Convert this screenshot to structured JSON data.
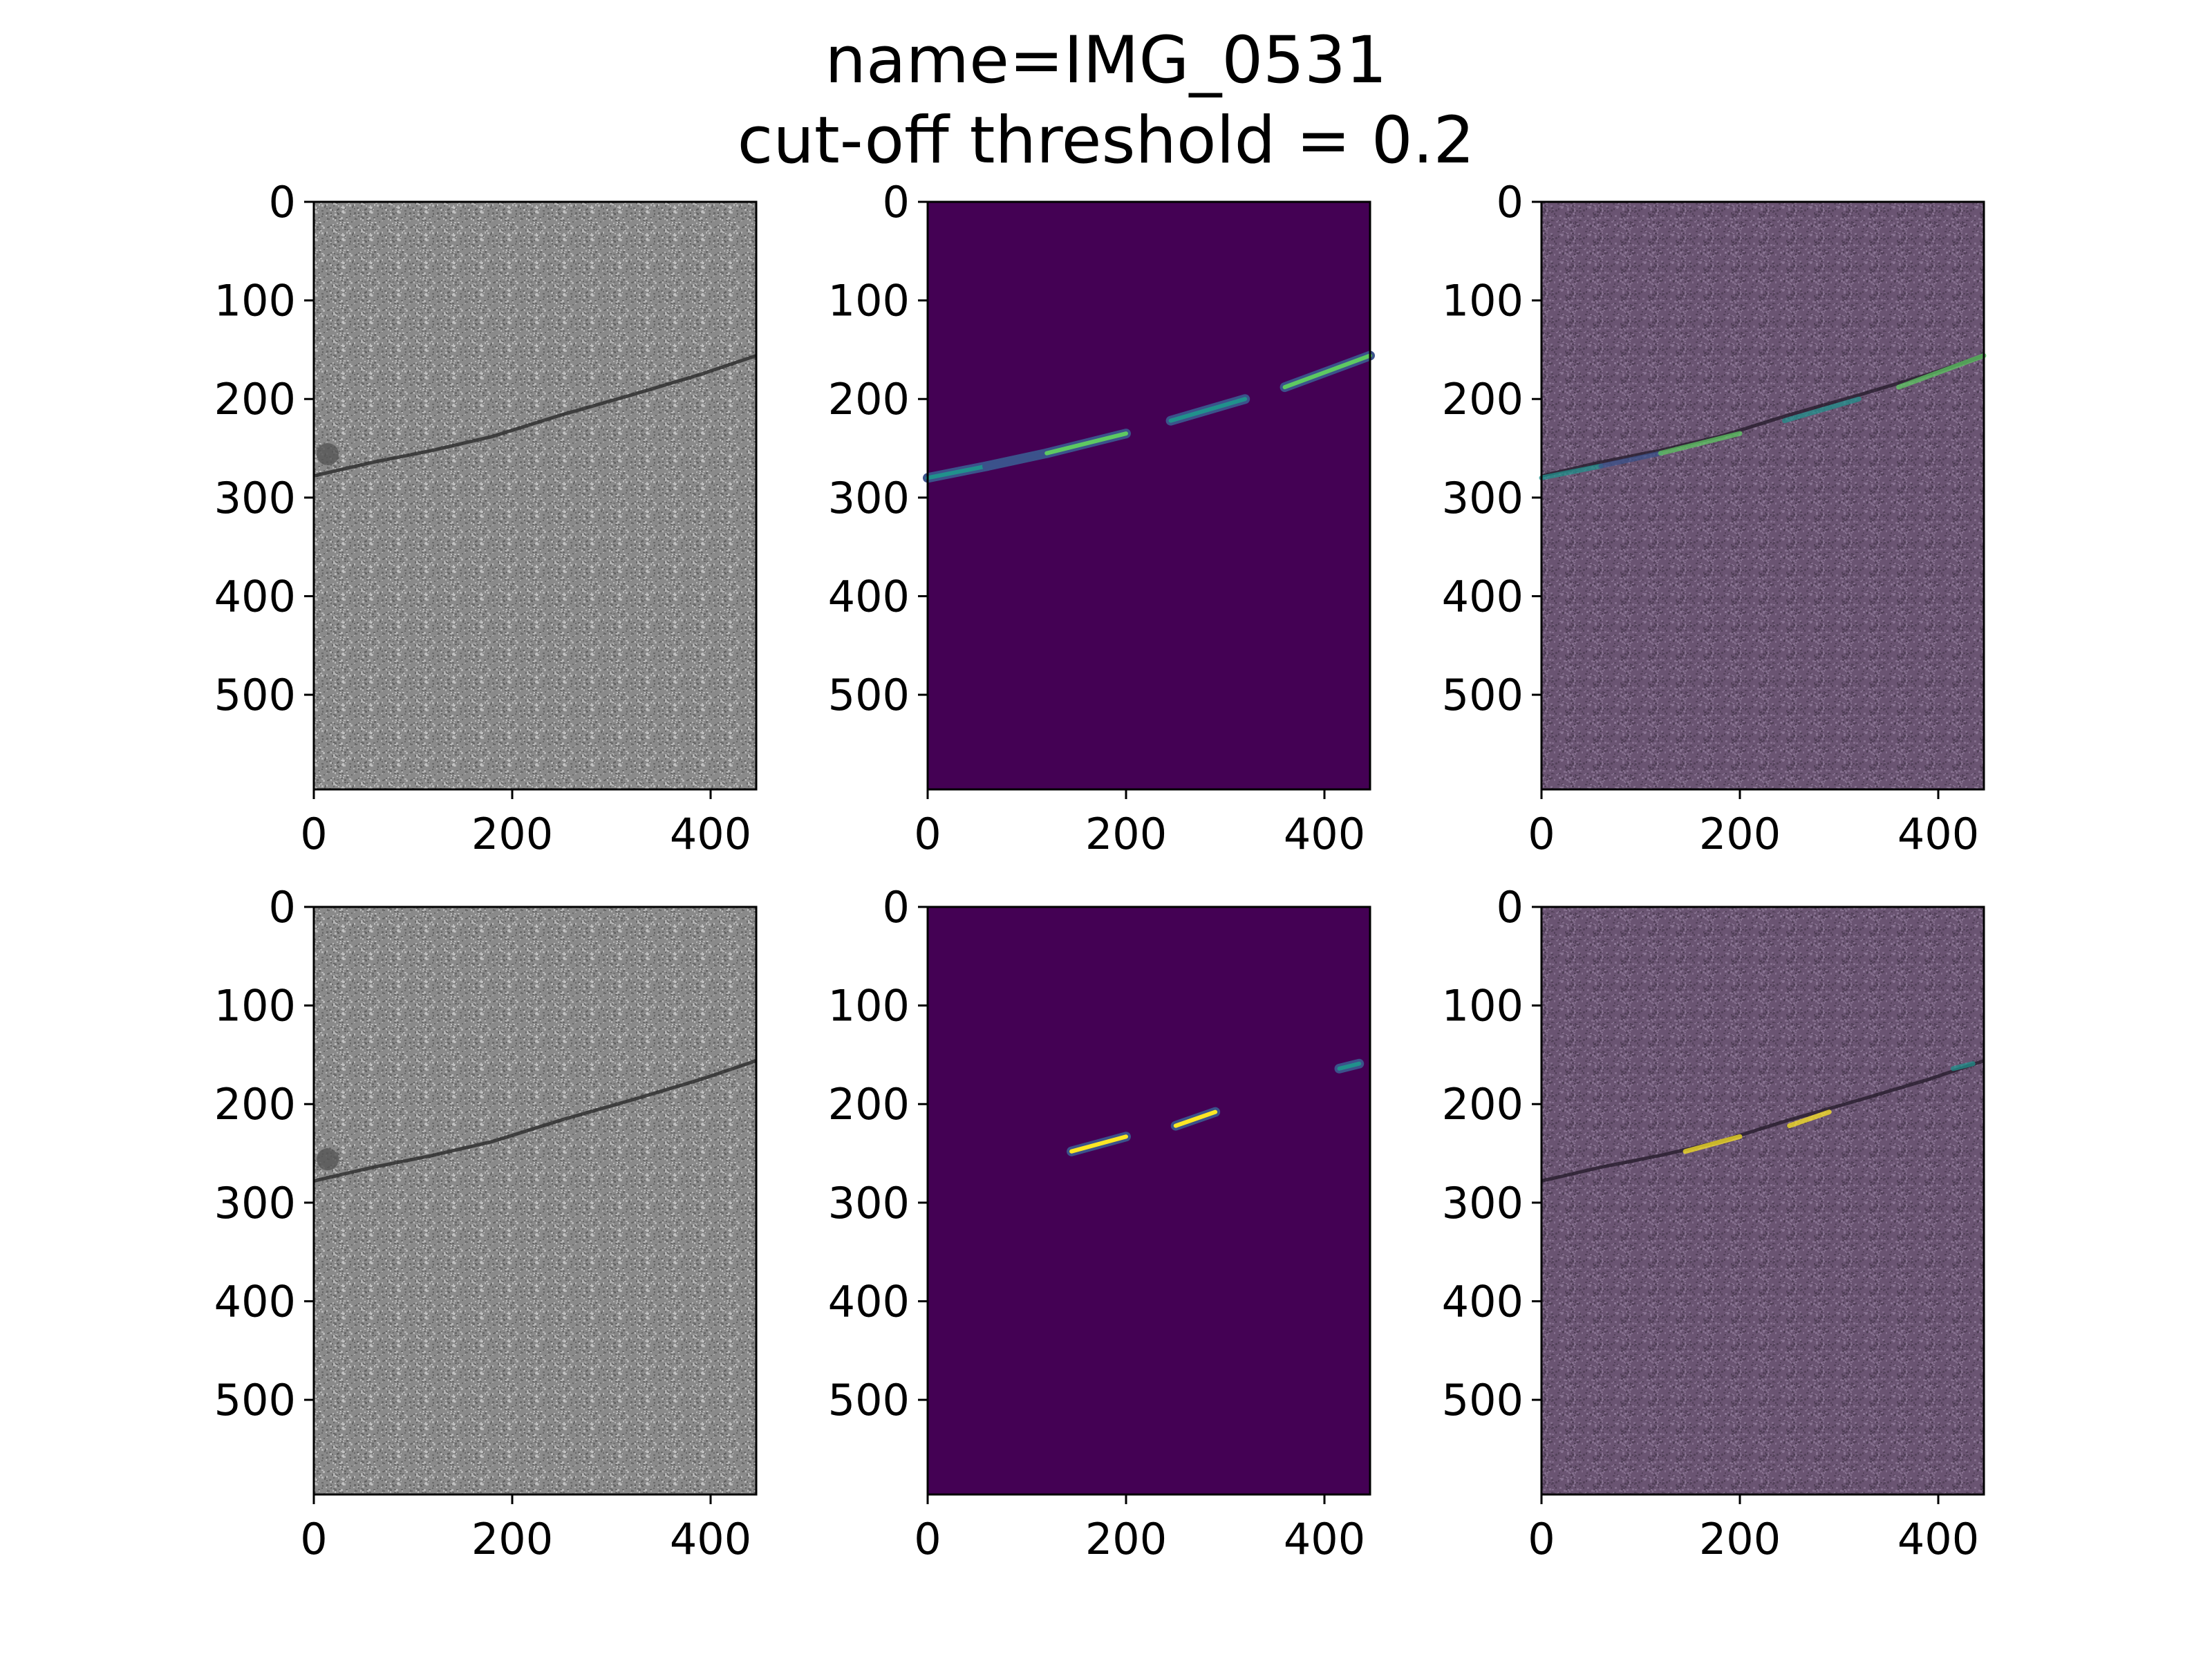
{
  "figure": {
    "title_line1": "name=IMG_0531",
    "title_line2": "cut-off threshold = 0.2"
  },
  "colors": {
    "viridis_background": "#440154",
    "viridis_low": "#3b528b",
    "viridis_mid": "#21918c",
    "viridis_high": "#5ec962",
    "viridis_peak": "#fde725",
    "photo_gray": "#8a8a8a",
    "overlay_purple": "#6a5472",
    "axis": "#000000"
  },
  "chart_data": [
    {
      "type": "heatmap",
      "panel": "original image",
      "row": 1,
      "col": 1,
      "xlim": [
        0,
        446
      ],
      "ylim": [
        596,
        0
      ],
      "xticks": [
        0,
        200,
        400
      ],
      "yticks": [
        0,
        100,
        200,
        300,
        400,
        500
      ],
      "crack_line": [
        [
          0,
          278
        ],
        [
          60,
          264
        ],
        [
          120,
          252
        ],
        [
          180,
          238
        ],
        [
          250,
          216
        ],
        [
          320,
          196
        ],
        [
          390,
          175
        ],
        [
          446,
          156
        ]
      ]
    },
    {
      "type": "heatmap",
      "panel": "ground truth mask",
      "row": 1,
      "col": 2,
      "xlim": [
        0,
        446
      ],
      "ylim": [
        596,
        0
      ],
      "xticks": [
        0,
        200,
        400
      ],
      "yticks": [
        0,
        100,
        200,
        300,
        400,
        500
      ],
      "segments": [
        {
          "x": [
            0,
            60
          ],
          "y": [
            280,
            268
          ],
          "intensity": 0.5
        },
        {
          "x": [
            60,
            120
          ],
          "y": [
            268,
            255
          ],
          "intensity": 0.45
        },
        {
          "x": [
            120,
            200
          ],
          "y": [
            255,
            235
          ],
          "intensity": 0.75
        },
        {
          "x": [
            245,
            320
          ],
          "y": [
            222,
            200
          ],
          "intensity": 0.6
        },
        {
          "x": [
            360,
            446
          ],
          "y": [
            188,
            156
          ],
          "intensity": 0.65
        }
      ]
    },
    {
      "type": "heatmap",
      "panel": "overlay",
      "row": 1,
      "col": 3,
      "xlim": [
        0,
        446
      ],
      "ylim": [
        596,
        0
      ],
      "xticks": [
        0,
        200,
        400
      ],
      "yticks": [
        0,
        100,
        200,
        300,
        400,
        500
      ]
    },
    {
      "type": "heatmap",
      "panel": "original image",
      "row": 2,
      "col": 1,
      "xlim": [
        0,
        446
      ],
      "ylim": [
        596,
        0
      ],
      "xticks": [
        0,
        200,
        400
      ],
      "yticks": [
        0,
        100,
        200,
        300,
        400,
        500
      ],
      "crack_line": [
        [
          0,
          278
        ],
        [
          60,
          264
        ],
        [
          120,
          252
        ],
        [
          180,
          238
        ],
        [
          250,
          216
        ],
        [
          320,
          196
        ],
        [
          390,
          175
        ],
        [
          446,
          156
        ]
      ]
    },
    {
      "type": "heatmap",
      "panel": "prediction mask",
      "row": 2,
      "col": 2,
      "xlim": [
        0,
        446
      ],
      "ylim": [
        596,
        0
      ],
      "xticks": [
        0,
        200,
        400
      ],
      "yticks": [
        0,
        100,
        200,
        300,
        400,
        500
      ],
      "segments": [
        {
          "x": [
            145,
            200
          ],
          "y": [
            248,
            233
          ],
          "intensity": 0.8
        },
        {
          "x": [
            250,
            290
          ],
          "y": [
            222,
            208
          ],
          "intensity": 0.85
        },
        {
          "x": [
            415,
            435
          ],
          "y": [
            164,
            159
          ],
          "intensity": 0.5
        }
      ]
    },
    {
      "type": "heatmap",
      "panel": "overlay",
      "row": 2,
      "col": 3,
      "xlim": [
        0,
        446
      ],
      "ylim": [
        596,
        0
      ],
      "xticks": [
        0,
        200,
        400
      ],
      "yticks": [
        0,
        100,
        200,
        300,
        400,
        500
      ]
    }
  ]
}
